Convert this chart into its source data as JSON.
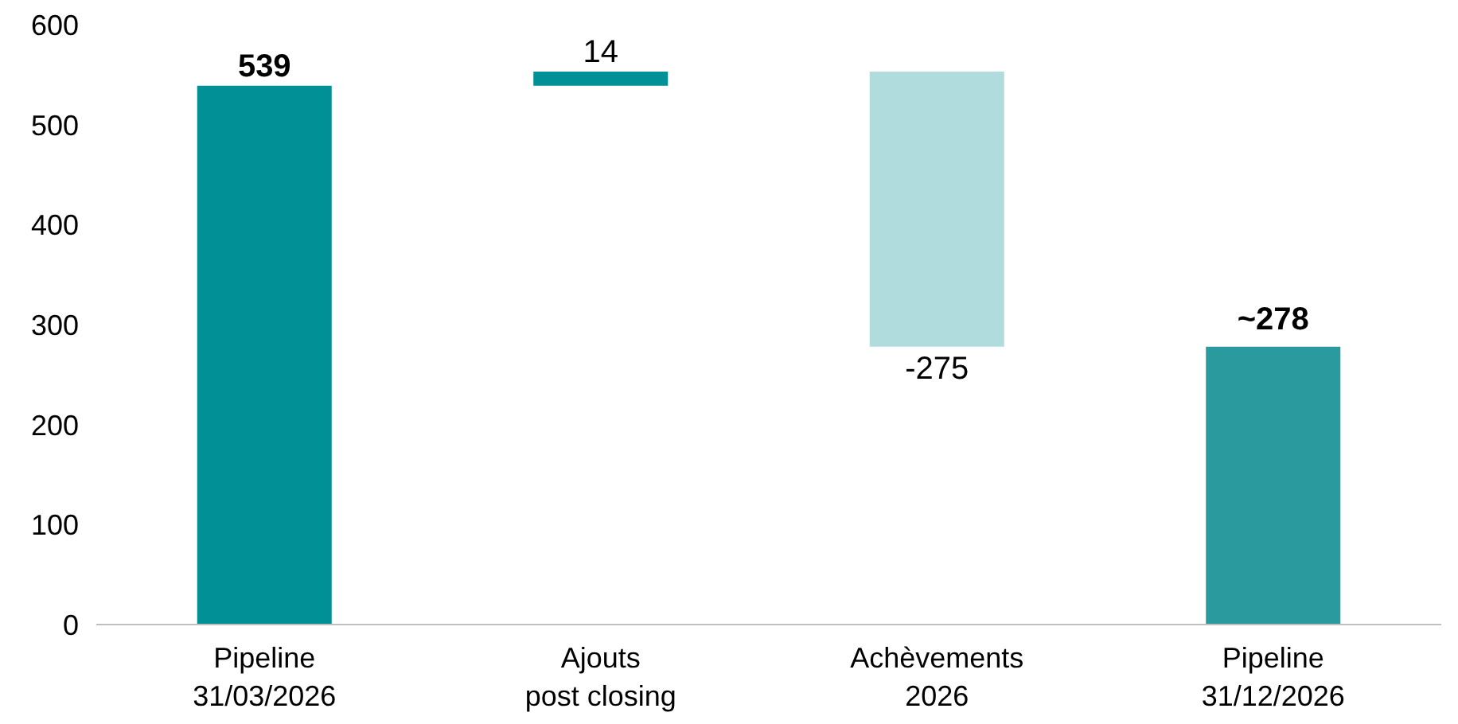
{
  "chart_data": {
    "type": "bar",
    "categories": [
      "Pipeline\n31/03/2026",
      "Ajouts\npost closing",
      "Achèvements\n2026",
      "Pipeline\n31/12/2026"
    ],
    "values": [
      539,
      14,
      -275,
      278
    ],
    "base": [
      0,
      539,
      553,
      0
    ],
    "colors": [
      "#009096",
      "#009096",
      "#b0dcdd",
      "#2a9a9e"
    ],
    "value_labels": [
      "539",
      "14",
      "-275",
      "~278"
    ],
    "ylim": [
      0,
      600
    ],
    "yticks": [
      0,
      100,
      200,
      300,
      400,
      500,
      600
    ],
    "grid": false
  }
}
